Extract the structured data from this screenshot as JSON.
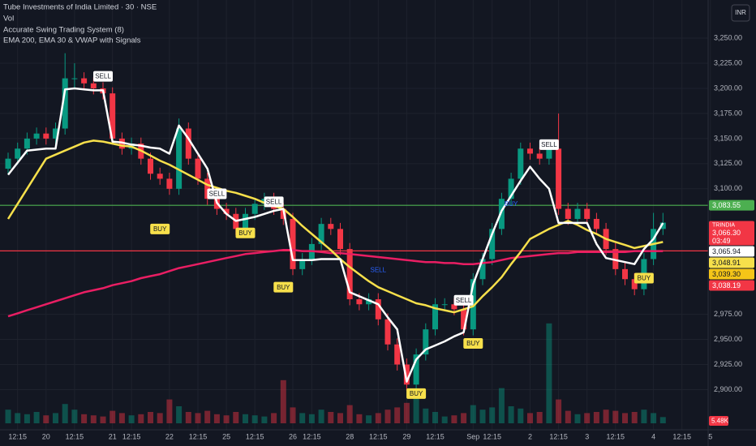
{
  "chart_data": {
    "type": "candlestick",
    "title": "Tube Investments of India Limited · 30 · NSE",
    "legend_items": [
      "Vol",
      "Accurate Swing Trading System (8)",
      "EMA 200, EMA 30 & VWAP with Signals"
    ],
    "currency": "INR",
    "categories": [
      null,
      "12:15",
      null,
      null,
      "20",
      null,
      null,
      "12:15",
      null,
      null,
      null,
      "21",
      null,
      "12:15",
      null,
      null,
      null,
      "22",
      null,
      null,
      "12:15",
      null,
      null,
      "25",
      null,
      null,
      "12:15",
      null,
      null,
      null,
      "26",
      null,
      "12:15",
      null,
      null,
      null,
      "28",
      null,
      null,
      "12:15",
      null,
      null,
      "29",
      null,
      null,
      "12:15",
      null,
      null,
      null,
      "Sep",
      null,
      "12:15",
      null,
      null,
      null,
      "2",
      null,
      null,
      "12:15",
      null,
      null,
      "3",
      null,
      null,
      "12:15",
      null,
      null,
      null,
      "4",
      null,
      null,
      "12:15",
      null,
      null,
      "5"
    ],
    "open": [
      3120,
      3130,
      3140,
      3150,
      3155,
      3150,
      3160,
      3210,
      3210,
      3205,
      3200,
      3195,
      3150,
      3140,
      3145,
      3130,
      3115,
      3110,
      3100,
      3160,
      3130,
      3110,
      3090,
      3080,
      3075,
      3060,
      3075,
      3085,
      3090,
      3080,
      3070,
      3020,
      3030,
      3045,
      3065,
      3060,
      3040,
      2990,
      2985,
      2990,
      2970,
      2945,
      2925,
      2905,
      2935,
      2960,
      2985,
      2985,
      2980,
      2960,
      3010,
      3030,
      3060,
      3090,
      3110,
      3140,
      3135,
      3130,
      3140,
      3080,
      3070,
      3080,
      3070,
      3060,
      3040,
      3020,
      3010,
      3000,
      3030,
      3060,
      null,
      null,
      null,
      null,
      null
    ],
    "high": [
      3136,
      3146,
      3156,
      3161,
      3161,
      3166,
      3235,
      3225,
      3216,
      3211,
      3206,
      3201,
      3156,
      3151,
      3151,
      3136,
      3121,
      3116,
      3170,
      3166,
      3136,
      3116,
      3096,
      3086,
      3081,
      3081,
      3091,
      3096,
      3096,
      3086,
      3076,
      3036,
      3051,
      3071,
      3071,
      3066,
      3046,
      2996,
      2996,
      2996,
      2976,
      2951,
      2931,
      2941,
      2966,
      2991,
      2991,
      2991,
      2986,
      3016,
      3036,
      3066,
      3096,
      3116,
      3146,
      3146,
      3141,
      3146,
      3175,
      3086,
      3086,
      3086,
      3076,
      3066,
      3046,
      3026,
      3016,
      3036,
      3076,
      3076,
      null,
      null,
      null,
      null,
      null
    ],
    "low": [
      3114,
      3124,
      3134,
      3144,
      3144,
      3144,
      3154,
      3200,
      3199,
      3194,
      3189,
      3144,
      3134,
      3134,
      3124,
      3109,
      3104,
      3094,
      3094,
      3124,
      3104,
      3084,
      3074,
      3069,
      3054,
      3054,
      3069,
      3079,
      3074,
      3064,
      3014,
      3014,
      3024,
      3039,
      3054,
      3034,
      2984,
      2979,
      2979,
      2964,
      2939,
      2919,
      2899,
      2899,
      2929,
      2954,
      2979,
      2974,
      2954,
      2954,
      3004,
      3024,
      3054,
      3084,
      3104,
      3129,
      3124,
      3124,
      3074,
      3064,
      3064,
      3064,
      3054,
      3034,
      3014,
      3004,
      2994,
      2994,
      3024,
      3054,
      null,
      null,
      null,
      null,
      null
    ],
    "close": [
      3130,
      3140,
      3150,
      3155,
      3150,
      3160,
      3210,
      3210,
      3205,
      3200,
      3195,
      3150,
      3140,
      3145,
      3130,
      3115,
      3110,
      3100,
      3160,
      3130,
      3110,
      3090,
      3080,
      3075,
      3060,
      3075,
      3085,
      3090,
      3080,
      3070,
      3020,
      3030,
      3045,
      3065,
      3060,
      3040,
      2990,
      2985,
      2990,
      2970,
      2945,
      2925,
      2905,
      2935,
      2960,
      2985,
      2985,
      2980,
      2960,
      3010,
      3030,
      3060,
      3090,
      3110,
      3140,
      3135,
      3130,
      3140,
      3080,
      3070,
      3080,
      3070,
      3060,
      3040,
      3020,
      3010,
      3000,
      3030,
      3060,
      3066.3,
      null,
      null,
      null,
      null,
      null
    ],
    "up_color": "#089981",
    "down_color": "#f23645",
    "lines": [
      {
        "color": "#e91e63",
        "values": [
          2973,
          2976,
          2979,
          2982,
          2985,
          2988,
          2991,
          2994,
          2997,
          2999,
          3001,
          3004,
          3006,
          3008,
          3011,
          3013,
          3015,
          3018,
          3021,
          3023,
          3025,
          3027,
          3029,
          3031,
          3033,
          3035,
          3036,
          3037,
          3038,
          3039,
          3039,
          3038,
          3038,
          3037,
          3036,
          3036,
          3035,
          3034,
          3033,
          3032,
          3031,
          3030,
          3029,
          3028,
          3027,
          3027,
          3026,
          3026,
          3025,
          3025,
          3026,
          3027,
          3029,
          3031,
          3032,
          3033,
          3034,
          3035,
          3036,
          3036,
          3037,
          3037,
          3037,
          3037,
          3037,
          3037,
          3038,
          3038,
          3038,
          3038,
          null,
          null,
          null,
          null,
          null
        ]
      },
      {
        "color": "#f7e04b",
        "values": [
          3070,
          3085,
          3100,
          3115,
          3130,
          3134,
          3138,
          3142,
          3146,
          3148,
          3147,
          3145,
          3143,
          3142,
          3138,
          3133,
          3128,
          3124,
          3119,
          3114,
          3109,
          3104,
          3101,
          3098,
          3096,
          3093,
          3090,
          3086,
          3083,
          3080,
          3072,
          3063,
          3055,
          3047,
          3039,
          3030,
          3022,
          3015,
          3008,
          3002,
          2998,
          2994,
          2990,
          2986,
          2984,
          2981,
          2979,
          2977,
          2980,
          2983,
          2993,
          3002,
          3012,
          3025,
          3037,
          3050,
          3055,
          3060,
          3064,
          3068,
          3064,
          3059,
          3055,
          3050,
          3047,
          3044,
          3041,
          3043,
          3045,
          3047,
          null,
          null,
          null,
          null,
          null
        ]
      },
      {
        "color": "#ffffff",
        "values": [
          3114,
          3126,
          3138,
          3139,
          3140,
          3140,
          3199,
          3200,
          3199,
          3198,
          3198,
          3147,
          3146,
          3144,
          3143,
          3141,
          3140,
          3135,
          3163,
          3150,
          3135,
          3120,
          3086,
          3075,
          3068,
          3070,
          3072,
          3075,
          3078,
          3080,
          3029,
          3029,
          3029,
          3030,
          3030,
          3030,
          2997,
          2993,
          2989,
          2985,
          2972,
          2960,
          2908,
          2930,
          2940,
          2944,
          2948,
          2953,
          2957,
          3005,
          3030,
          3055,
          3078,
          3093,
          3108,
          3122,
          3110,
          3100,
          3066,
          3066,
          3066,
          3066,
          3045,
          3031,
          3029,
          3027,
          3025,
          3040,
          3050,
          3065.94,
          null,
          null,
          null,
          null,
          null
        ]
      }
    ],
    "volume": [
      12,
      9,
      8,
      10,
      7,
      9,
      17,
      12,
      8,
      7,
      6,
      11,
      9,
      7,
      8,
      10,
      9,
      21,
      15,
      10,
      9,
      11,
      8,
      7,
      10,
      8,
      7,
      6,
      9,
      38,
      14,
      9,
      8,
      12,
      10,
      9,
      16,
      8,
      7,
      9,
      12,
      14,
      18,
      24,
      13,
      10,
      6,
      7,
      9,
      16,
      12,
      14,
      31,
      15,
      13,
      9,
      10,
      88,
      21,
      11,
      8,
      9,
      10,
      12,
      11,
      9,
      10,
      12,
      9,
      5.48,
      null,
      null,
      null,
      null,
      null
    ],
    "volume_last_label": "5.48K",
    "signals": [
      {
        "text": "SELL",
        "x": 10,
        "y": 3212,
        "color": "#ffffff",
        "style": "box"
      },
      {
        "text": "BUY",
        "x": 16,
        "y": 3060,
        "color": "#f7e04b",
        "style": "box"
      },
      {
        "text": "SELL",
        "x": 22,
        "y": 3095,
        "color": "#ffffff",
        "style": "box"
      },
      {
        "text": "BUY",
        "x": 25,
        "y": 3056,
        "color": "#f7e04b",
        "style": "box"
      },
      {
        "text": "SELL",
        "x": 28,
        "y": 3087,
        "color": "#ffffff",
        "style": "box"
      },
      {
        "text": "BUY",
        "x": 29,
        "y": 3002,
        "color": "#f7e04b",
        "style": "box"
      },
      {
        "text": "SELL",
        "x": 39,
        "y": 3019,
        "color": "#2962ff",
        "style": "text"
      },
      {
        "text": "BUY",
        "x": 43,
        "y": 2896,
        "color": "#f7e04b",
        "style": "box"
      },
      {
        "text": "SELL",
        "x": 48,
        "y": 2989,
        "color": "#ffffff",
        "style": "box"
      },
      {
        "text": "BUY",
        "x": 49,
        "y": 2946,
        "color": "#f7e04b",
        "style": "box"
      },
      {
        "text": "BUY",
        "x": 53,
        "y": 3085,
        "color": "#2962ff",
        "style": "text"
      },
      {
        "text": "SELL",
        "x": 57,
        "y": 3144,
        "color": "#ffffff",
        "style": "box"
      },
      {
        "text": "BUY",
        "x": 67,
        "y": 3011,
        "color": "#f7e04b",
        "style": "box"
      }
    ],
    "ylim": [
      2860,
      3288
    ],
    "yticks": [
      {
        "value": 3250,
        "label": "3,250.00"
      },
      {
        "value": 3225,
        "label": "3,225.00"
      },
      {
        "value": 3200,
        "label": "3,200.00"
      },
      {
        "value": 3175,
        "label": "3,175.00"
      },
      {
        "value": 3150,
        "label": "3,150.00"
      },
      {
        "value": 3125,
        "label": "3,125.00"
      },
      {
        "value": 3100,
        "label": "3,100.00"
      },
      {
        "value": 2975,
        "label": "2,975.00"
      },
      {
        "value": 2950,
        "label": "2,950.00"
      },
      {
        "value": 2925,
        "label": "2,925.00"
      },
      {
        "value": 2900,
        "label": "2,900.00"
      }
    ],
    "grid": true,
    "price_labels": [
      {
        "value": 3083.55,
        "label": "3,083.55",
        "color": "#4caf50",
        "text_color": "#ffffff",
        "line": true
      },
      {
        "value": 3066.3,
        "label": "3,066.30",
        "name": "TRINDIA",
        "countdown": "03:49",
        "color": "#f23645",
        "text_color": "#ffffff",
        "line": false
      },
      {
        "value": 3065.94,
        "label": "3,065.94",
        "color": "#ffffff",
        "text_color": "#131722",
        "line": false
      },
      {
        "value": 3048.91,
        "label": "3,048.91",
        "color": "#f7e04b",
        "text_color": "#131722",
        "line": false
      },
      {
        "value": 3039.3,
        "label": "3,039.30",
        "color": "#f5c518",
        "text_color": "#131722",
        "line": false
      },
      {
        "value": 3038.19,
        "label": "3,038.19",
        "color": "#f23645",
        "text_color": "#ffffff",
        "line": true
      }
    ]
  }
}
